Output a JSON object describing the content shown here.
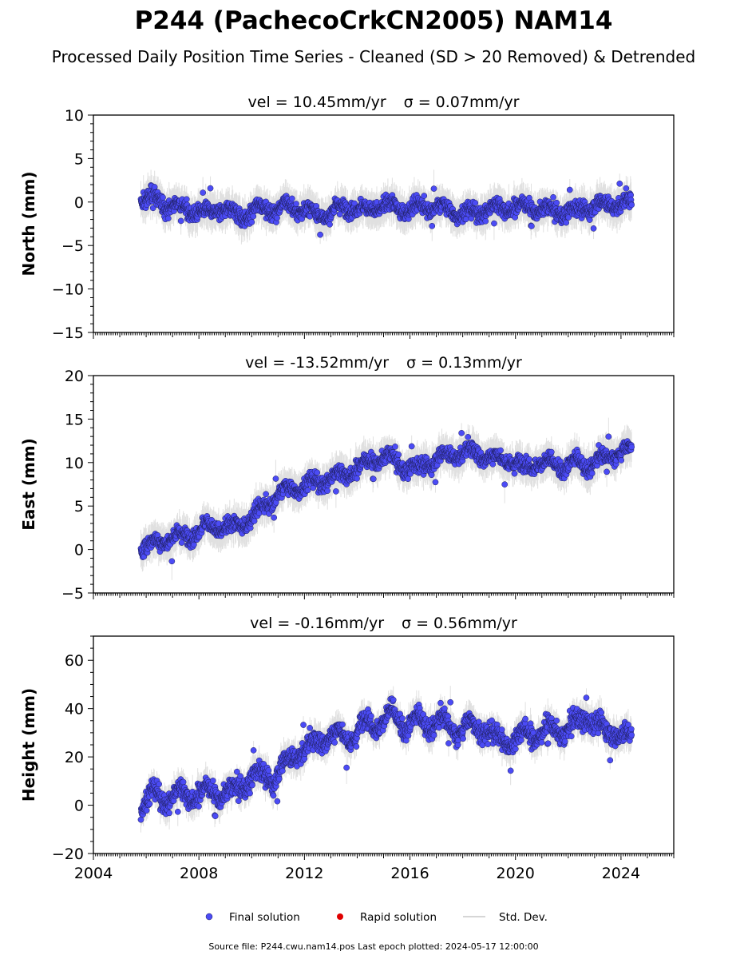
{
  "title": "P244 (PachecoCrkCN2005) NAM14",
  "subtitle": "Processed Daily Position Time Series - Cleaned (SD > 20 Removed) & Detrended",
  "footer": "Source file: P244.cwu.nam14.pos  Last epoch plotted: 2024-05-17 12:00:00",
  "colors": {
    "final": "#4b4bf5",
    "rapid": "#e00000",
    "std": "#c8c8c8",
    "marker_edge": "#1e1e5a"
  },
  "legend": {
    "position": "bottom-center",
    "items": [
      {
        "label": "Final solution",
        "kind": "final"
      },
      {
        "label": "Rapid solution",
        "kind": "rapid"
      },
      {
        "label": "Std. Dev.",
        "kind": "std"
      }
    ]
  },
  "chart_data": [
    {
      "type": "scatter",
      "panel": "north",
      "title_prefix": "vel = 10.45mm/yr",
      "title_sigma": "σ = 0.07mm/yr",
      "ylabel": "North (mm)",
      "xlim": [
        2004.0,
        2026.0
      ],
      "ylim": [
        -15,
        10
      ],
      "yticks": [
        10,
        5,
        0,
        -5,
        -10,
        -15
      ],
      "xticks": [],
      "series": [
        {
          "name": "Final solution",
          "x": [
            2005.8,
            2006.3,
            2006.8,
            2007.3,
            2007.8,
            2008.3,
            2008.8,
            2009.3,
            2009.8,
            2010.3,
            2010.8,
            2011.3,
            2011.8,
            2012.3,
            2012.8,
            2013.3,
            2013.8,
            2014.3,
            2014.8,
            2015.3,
            2015.8,
            2016.3,
            2016.8,
            2017.3,
            2017.8,
            2018.3,
            2018.8,
            2019.3,
            2019.8,
            2020.3,
            2020.8,
            2021.3,
            2021.8,
            2022.3,
            2022.8,
            2023.3,
            2023.8,
            2024.3
          ],
          "y": [
            0.2,
            0.5,
            -0.3,
            -0.6,
            -1.0,
            -1.2,
            -0.8,
            -1.3,
            -1.6,
            -0.6,
            -0.9,
            -0.5,
            -0.8,
            -1.2,
            -1.6,
            -0.7,
            -0.5,
            -1.0,
            -0.6,
            -0.4,
            -0.9,
            -0.6,
            -0.5,
            -0.7,
            -1.2,
            -1.4,
            -0.9,
            -0.6,
            -0.7,
            -0.4,
            -0.8,
            -1.0,
            -1.2,
            -0.9,
            -0.6,
            -0.3,
            -0.2,
            -0.1
          ]
        }
      ]
    },
    {
      "type": "scatter",
      "panel": "east",
      "title_prefix": "vel = -13.52mm/yr",
      "title_sigma": "σ = 0.13mm/yr",
      "ylabel": "East (mm)",
      "xlim": [
        2004.0,
        2026.0
      ],
      "ylim": [
        -5,
        20
      ],
      "yticks": [
        20,
        15,
        10,
        5,
        0,
        -5
      ],
      "xticks": [],
      "series": [
        {
          "name": "Final solution",
          "x": [
            2005.8,
            2006.3,
            2006.8,
            2007.3,
            2007.8,
            2008.3,
            2008.8,
            2009.3,
            2009.8,
            2010.3,
            2010.8,
            2011.3,
            2011.8,
            2012.3,
            2012.8,
            2013.3,
            2013.8,
            2014.3,
            2014.8,
            2015.3,
            2015.8,
            2016.3,
            2016.8,
            2017.3,
            2017.8,
            2018.3,
            2018.8,
            2019.3,
            2019.8,
            2020.3,
            2020.8,
            2021.3,
            2021.8,
            2022.3,
            2022.8,
            2023.3,
            2023.8,
            2024.3
          ],
          "y": [
            0.0,
            0.8,
            1.2,
            1.5,
            1.8,
            2.8,
            2.3,
            2.6,
            3.2,
            4.5,
            5.8,
            6.9,
            7.2,
            7.6,
            8.0,
            8.6,
            8.9,
            10.0,
            10.4,
            10.6,
            9.3,
            9.5,
            10.0,
            10.8,
            11.0,
            11.3,
            10.8,
            10.5,
            10.2,
            9.5,
            10.0,
            9.8,
            9.4,
            10.2,
            9.6,
            10.5,
            11.0,
            11.5
          ]
        }
      ]
    },
    {
      "type": "scatter",
      "panel": "height",
      "title_prefix": "vel = -0.16mm/yr",
      "title_sigma": "σ = 0.56mm/yr",
      "ylabel": "Height (mm)",
      "xlim": [
        2004.0,
        2026.0
      ],
      "ylim": [
        -20,
        70
      ],
      "yticks": [
        60,
        40,
        20,
        0,
        -20
      ],
      "xticks": [
        2004,
        2008,
        2012,
        2016,
        2020,
        2024
      ],
      "series": [
        {
          "name": "Final solution",
          "x": [
            2005.8,
            2006.3,
            2006.8,
            2007.3,
            2007.8,
            2008.3,
            2008.8,
            2009.3,
            2009.8,
            2010.3,
            2010.8,
            2011.3,
            2011.8,
            2012.3,
            2012.8,
            2013.3,
            2013.8,
            2014.3,
            2014.8,
            2015.3,
            2015.8,
            2016.3,
            2016.8,
            2017.3,
            2017.8,
            2018.3,
            2018.8,
            2019.3,
            2019.8,
            2020.3,
            2020.8,
            2021.3,
            2021.8,
            2022.3,
            2022.8,
            2023.3,
            2023.8,
            2024.3
          ],
          "y": [
            0.0,
            5.0,
            2.0,
            6.0,
            3.0,
            7.0,
            4.0,
            6.0,
            9.0,
            14.0,
            10.0,
            18.0,
            22.0,
            25.0,
            28.0,
            30.0,
            27.0,
            35.0,
            33.0,
            38.0,
            32.0,
            36.0,
            33.0,
            35.0,
            30.0,
            34.0,
            31.0,
            28.0,
            26.0,
            30.0,
            29.0,
            32.0,
            30.0,
            34.0,
            37.0,
            31.0,
            30.0,
            28.0
          ]
        }
      ]
    }
  ]
}
